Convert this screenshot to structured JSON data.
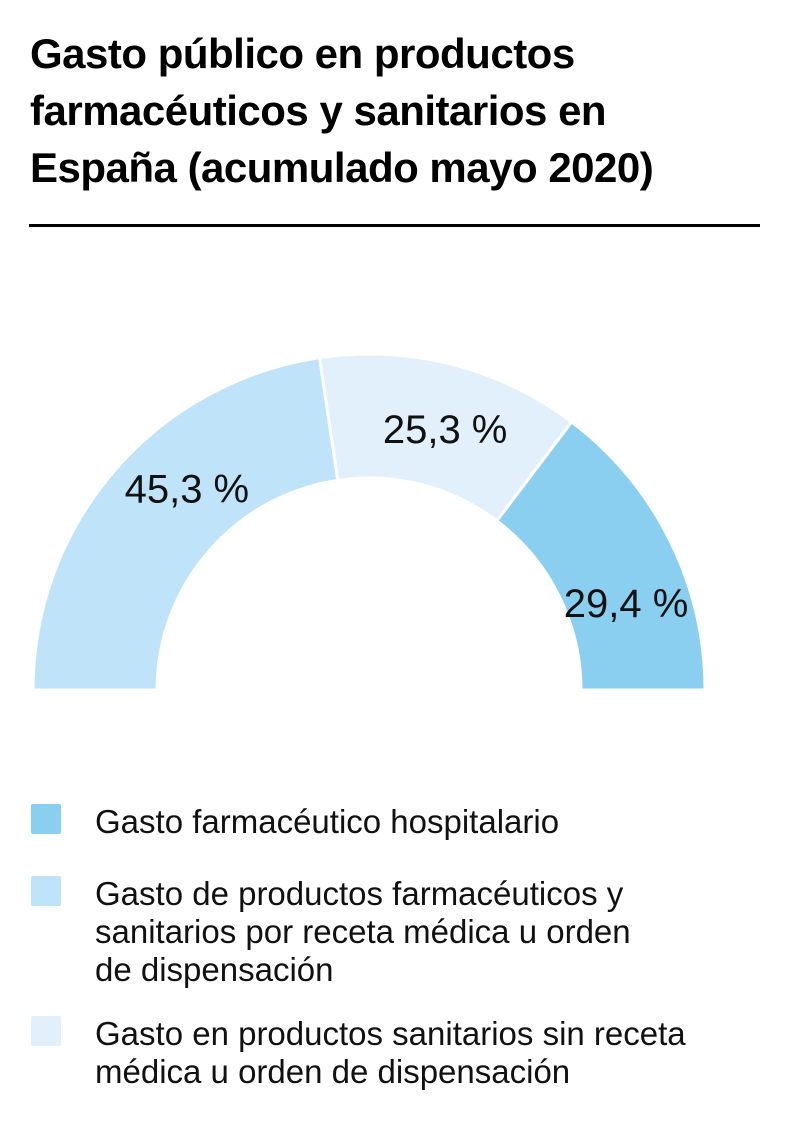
{
  "header": {
    "title": "Gasto público en productos farmacéuticos y sanitarios en España (acumulado mayo 2020)",
    "title_lines": [
      "Gasto público en productos",
      "farmacéuticos y sanitarios en",
      "España (acumulado mayo 2020)"
    ]
  },
  "chart_data": {
    "type": "pie",
    "variant": "half_donut",
    "title": "Gasto público en productos farmacéuticos y sanitarios en España (acumulado mayo 2020)",
    "unit": "%",
    "total": 100,
    "start_angle_deg": 180,
    "end_angle_deg": 0,
    "legend_position": "bottom-left",
    "slices": [
      {
        "name": "Gasto de productos farmacéuticos y sanitarios por receta médica u orden de dispensación",
        "value": 45.3,
        "label": "45,3 %",
        "color": "#BFE3F8"
      },
      {
        "name": "Gasto en productos sanitarios sin receta médica u orden de dispensación",
        "value": 25.3,
        "label": "25,3 %",
        "color": "#E1F0FB"
      },
      {
        "name": "Gasto farmacéutico hospitalario",
        "value": 29.4,
        "label": "29,4 %",
        "color": "#8BCFF0"
      }
    ]
  },
  "legend": {
    "items": [
      {
        "color": "#8BCFF0",
        "text": "Gasto farmacéutico hospitalario",
        "lines": [
          "Gasto farmacéutico hospitalario"
        ]
      },
      {
        "color": "#BFE3F8",
        "text": "Gasto de productos farmacéuticos y sanitarios por receta médica u orden de dispensación",
        "lines": [
          "Gasto de productos farmacéuticos y",
          "sanitarios por receta médica u orden",
          "de dispensación"
        ]
      },
      {
        "color": "#E1F0FB",
        "text": "Gasto en productos sanitarios sin receta médica u orden de dispensación",
        "lines": [
          "Gasto en productos sanitarios sin receta",
          "médica u orden de dispensación"
        ]
      }
    ]
  }
}
